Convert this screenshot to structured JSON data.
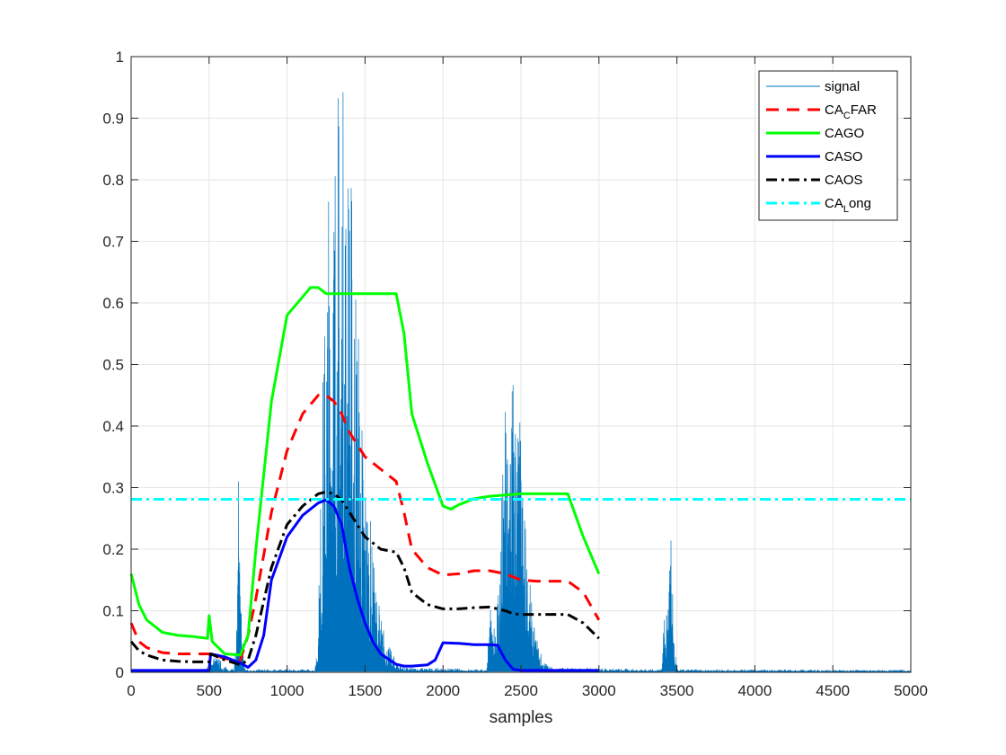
{
  "chart_data": {
    "type": "line",
    "title": "",
    "xlabel": "samples",
    "ylabel": "",
    "xlim": [
      0,
      5000
    ],
    "ylim": [
      0,
      1
    ],
    "xticks": [
      0,
      500,
      1000,
      1500,
      2000,
      2500,
      3000,
      3500,
      4000,
      4500,
      5000
    ],
    "xtick_labels": [
      "0",
      "500",
      "1000",
      "1500",
      "2000",
      "2500",
      "3000",
      "3500",
      "4000",
      "4500",
      "5000"
    ],
    "yticks": [
      0,
      0.1,
      0.2,
      0.3,
      0.4,
      0.5,
      0.6,
      0.7,
      0.8,
      0.9,
      1
    ],
    "ytick_labels": [
      "0",
      "0.1",
      "0.2",
      "0.3",
      "0.4",
      "0.5",
      "0.6",
      "0.7",
      "0.8",
      "0.9",
      "1"
    ],
    "grid": true,
    "legend_position": "top-right",
    "signal": {
      "name": "signal",
      "color": "#0072BD",
      "description_bursts": [
        {
          "start": 690,
          "end": 720,
          "peak": 0.37
        },
        {
          "start": 1210,
          "end": 1560,
          "peak": 1.0
        },
        {
          "start": 2300,
          "end": 2560,
          "peak": 0.55
        },
        {
          "start": 3420,
          "end": 3480,
          "peak": 0.27
        }
      ],
      "noise_floor": 0.005,
      "envelope": [
        [
          0,
          0.004
        ],
        [
          480,
          0.004
        ],
        [
          500,
          0.02
        ],
        [
          520,
          0.03
        ],
        [
          560,
          0.025
        ],
        [
          600,
          0.01
        ],
        [
          660,
          0.005
        ],
        [
          680,
          0.1
        ],
        [
          690,
          0.37
        ],
        [
          700,
          0.15
        ],
        [
          710,
          0.13
        ],
        [
          720,
          0.02
        ],
        [
          740,
          0.005
        ],
        [
          1180,
          0.005
        ],
        [
          1200,
          0.1
        ],
        [
          1230,
          0.5
        ],
        [
          1260,
          0.8
        ],
        [
          1290,
          0.95
        ],
        [
          1320,
          1.0
        ],
        [
          1360,
          0.98
        ],
        [
          1400,
          0.9
        ],
        [
          1440,
          0.72
        ],
        [
          1480,
          0.45
        ],
        [
          1520,
          0.3
        ],
        [
          1560,
          0.17
        ],
        [
          1600,
          0.1
        ],
        [
          1640,
          0.05
        ],
        [
          1700,
          0.02
        ],
        [
          1760,
          0.008
        ],
        [
          2280,
          0.005
        ],
        [
          2300,
          0.12
        ],
        [
          2320,
          0.05
        ],
        [
          2360,
          0.2
        ],
        [
          2400,
          0.45
        ],
        [
          2440,
          0.55
        ],
        [
          2470,
          0.5
        ],
        [
          2500,
          0.4
        ],
        [
          2540,
          0.2
        ],
        [
          2580,
          0.08
        ],
        [
          2640,
          0.02
        ],
        [
          2700,
          0.008
        ],
        [
          3400,
          0.005
        ],
        [
          3420,
          0.1
        ],
        [
          3440,
          0.13
        ],
        [
          3460,
          0.27
        ],
        [
          3480,
          0.05
        ],
        [
          3500,
          0.005
        ],
        [
          5000,
          0.004
        ]
      ]
    },
    "series": [
      {
        "name": "CA_CFAR",
        "color": "#FF0000",
        "style": "dashed",
        "x": [
          0,
          50,
          100,
          200,
          300,
          400,
          480,
          520,
          600,
          700,
          750,
          800,
          900,
          1000,
          1100,
          1200,
          1250,
          1300,
          1350,
          1400,
          1450,
          1500,
          1550,
          1600,
          1700,
          1750,
          1800,
          1900,
          2000,
          2100,
          2200,
          2300,
          2400,
          2500,
          2600,
          2700,
          2800,
          2900,
          3000
        ],
        "values": [
          0.08,
          0.05,
          0.04,
          0.032,
          0.03,
          0.03,
          0.03,
          0.03,
          0.022,
          0.02,
          0.06,
          0.12,
          0.26,
          0.36,
          0.42,
          0.45,
          0.45,
          0.44,
          0.42,
          0.39,
          0.37,
          0.35,
          0.34,
          0.33,
          0.31,
          0.26,
          0.2,
          0.17,
          0.158,
          0.16,
          0.165,
          0.165,
          0.16,
          0.15,
          0.148,
          0.148,
          0.148,
          0.13,
          0.085
        ]
      },
      {
        "name": "CAGO",
        "color": "#00FF00",
        "style": "solid",
        "x": [
          0,
          50,
          100,
          200,
          300,
          400,
          490,
          500,
          520,
          600,
          700,
          750,
          800,
          900,
          1000,
          1100,
          1150,
          1200,
          1250,
          1300,
          1400,
          1500,
          1600,
          1700,
          1750,
          1800,
          1900,
          2000,
          2050,
          2100,
          2200,
          2300,
          2400,
          2500,
          2600,
          2700,
          2800,
          2900,
          3000
        ],
        "values": [
          0.16,
          0.11,
          0.085,
          0.065,
          0.06,
          0.058,
          0.055,
          0.092,
          0.05,
          0.03,
          0.028,
          0.06,
          0.2,
          0.44,
          0.58,
          0.61,
          0.625,
          0.625,
          0.615,
          0.615,
          0.615,
          0.615,
          0.615,
          0.615,
          0.55,
          0.42,
          0.34,
          0.27,
          0.265,
          0.272,
          0.282,
          0.286,
          0.288,
          0.29,
          0.29,
          0.29,
          0.29,
          0.22,
          0.16
        ]
      },
      {
        "name": "CASO",
        "color": "#0000FF",
        "style": "solid",
        "x": [
          0,
          100,
          200,
          300,
          400,
          500,
          510,
          600,
          700,
          750,
          800,
          850,
          900,
          1000,
          1100,
          1200,
          1250,
          1300,
          1350,
          1400,
          1450,
          1500,
          1550,
          1600,
          1700,
          1750,
          1800,
          1900,
          1950,
          2000,
          2100,
          2200,
          2300,
          2350,
          2400,
          2450,
          2500,
          2600,
          2800,
          3000
        ],
        "values": [
          0.003,
          0.003,
          0.003,
          0.003,
          0.003,
          0.003,
          0.03,
          0.025,
          0.015,
          0.008,
          0.02,
          0.06,
          0.15,
          0.22,
          0.255,
          0.275,
          0.28,
          0.27,
          0.24,
          0.17,
          0.12,
          0.08,
          0.05,
          0.03,
          0.013,
          0.01,
          0.01,
          0.012,
          0.02,
          0.048,
          0.047,
          0.045,
          0.045,
          0.044,
          0.02,
          0.005,
          0.003,
          0.003,
          0.003,
          0.003
        ]
      },
      {
        "name": "CAOS",
        "color": "#000000",
        "style": "dashdot",
        "x": [
          0,
          50,
          100,
          200,
          300,
          400,
          500,
          510,
          600,
          700,
          750,
          800,
          900,
          1000,
          1100,
          1200,
          1250,
          1300,
          1350,
          1400,
          1450,
          1500,
          1550,
          1600,
          1700,
          1750,
          1800,
          1900,
          2000,
          2100,
          2200,
          2300,
          2400,
          2450,
          2500,
          2600,
          2800,
          2900,
          3000
        ],
        "values": [
          0.05,
          0.035,
          0.028,
          0.02,
          0.018,
          0.017,
          0.017,
          0.03,
          0.02,
          0.012,
          0.02,
          0.06,
          0.17,
          0.24,
          0.27,
          0.29,
          0.293,
          0.29,
          0.28,
          0.26,
          0.24,
          0.22,
          0.21,
          0.2,
          0.195,
          0.17,
          0.13,
          0.11,
          0.103,
          0.103,
          0.105,
          0.106,
          0.1,
          0.095,
          0.094,
          0.094,
          0.094,
          0.08,
          0.055
        ]
      },
      {
        "name": "CA_Long",
        "color": "#00FFFF",
        "style": "dashdot",
        "x": [
          0,
          5000
        ],
        "values": [
          0.281,
          0.281
        ]
      }
    ],
    "legend": [
      {
        "main": "signal",
        "sub": "",
        "rest": "",
        "color": "#0072BD",
        "style": "thin"
      },
      {
        "main": "CA",
        "sub": "C",
        "rest": "FAR",
        "color": "#FF0000",
        "style": "dashed"
      },
      {
        "main": "CAGO",
        "sub": "",
        "rest": "",
        "color": "#00FF00",
        "style": "solid"
      },
      {
        "main": "CASO",
        "sub": "",
        "rest": "",
        "color": "#0000FF",
        "style": "solid"
      },
      {
        "main": "CAOS",
        "sub": "",
        "rest": "",
        "color": "#000000",
        "style": "dashdot"
      },
      {
        "main": "CA",
        "sub": "L",
        "rest": "ong",
        "color": "#00FFFF",
        "style": "dashdot"
      }
    ]
  }
}
